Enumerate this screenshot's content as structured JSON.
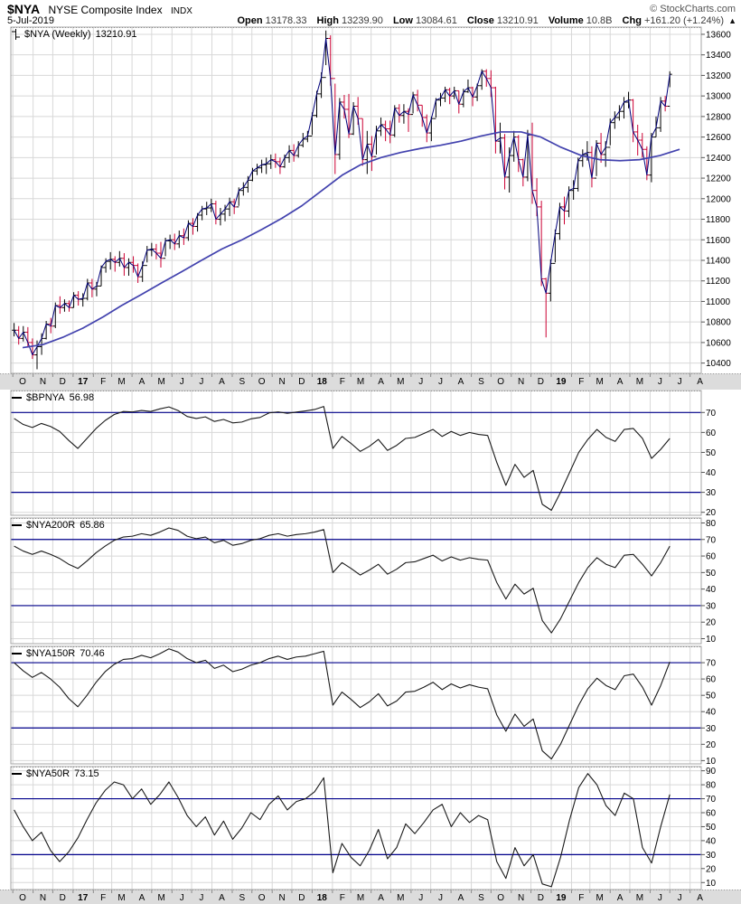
{
  "header": {
    "symbol": "$NYA",
    "name": "NYSE Composite Index",
    "exchange": "INDX",
    "date": "5-Jul-2019",
    "credit": "© StockCharts.com",
    "quote": {
      "open_label": "Open",
      "open": "13178.33",
      "high_label": "High",
      "high": "13239.90",
      "low_label": "Low",
      "low": "13084.61",
      "close_label": "Close",
      "close": "13210.91",
      "volume_label": "Volume",
      "volume": "10.8B",
      "chg_label": "Chg",
      "chg": "+161.20 (+1.24%)",
      "chg_dir": "▲"
    }
  },
  "main_panel": {
    "legend": "$NYA (Weekly)",
    "value": "13210.91"
  },
  "x_axis": {
    "labels": [
      "O",
      "N",
      "D",
      "17",
      "F",
      "M",
      "A",
      "M",
      "J",
      "J",
      "A",
      "S",
      "O",
      "N",
      "D",
      "18",
      "F",
      "M",
      "A",
      "M",
      "J",
      "J",
      "A",
      "S",
      "O",
      "N",
      "D",
      "19",
      "F",
      "M",
      "A",
      "M",
      "J",
      "J",
      "A"
    ]
  },
  "colors": {
    "up": "#000000",
    "down": "#cc0033",
    "close_line": "#00007a",
    "ma_line": "#4242ae",
    "indicator": "#1a1a1a",
    "ref": "#00008b",
    "grid": "#d8d8d8",
    "frame": "#a6a6a6",
    "strip": "#dcdcdc"
  },
  "chart_data": [
    {
      "id": "nya-weekly",
      "type": "ohlc",
      "title": "$NYA (Weekly)",
      "last": 13210.91,
      "frequency": "weekly",
      "start": "2016-10-03",
      "end": "2019-07-01",
      "ylim": [
        10300,
        13670
      ],
      "yticks": [
        13600,
        13400,
        13200,
        13000,
        12800,
        12600,
        12400,
        12200,
        12000,
        11800,
        11600,
        11400,
        11200,
        11000,
        10800,
        10600,
        10400
      ],
      "close": [
        10720,
        10640,
        10700,
        10600,
        10480,
        10560,
        10640,
        10780,
        10760,
        10960,
        10940,
        10980,
        10940,
        11060,
        11020,
        11030,
        11180,
        11120,
        11150,
        11330,
        11390,
        11410,
        11380,
        11420,
        11330,
        11380,
        11350,
        11240,
        11350,
        11500,
        11510,
        11470,
        11420,
        11590,
        11600,
        11560,
        11640,
        11620,
        11760,
        11730,
        11840,
        11900,
        11910,
        11950,
        11800,
        11850,
        11900,
        11970,
        11920,
        12080,
        12110,
        12180,
        12270,
        12300,
        12330,
        12340,
        12380,
        12360,
        12310,
        12400,
        12470,
        12420,
        12520,
        12580,
        12610,
        12810,
        13020,
        13180,
        13560,
        13170,
        12430,
        12940,
        12870,
        12630,
        12900,
        12780,
        12380,
        12530,
        12410,
        12660,
        12720,
        12680,
        12620,
        12880,
        12810,
        12850,
        12820,
        13010,
        12910,
        12790,
        12640,
        12780,
        12960,
        12980,
        13060,
        13000,
        13050,
        12920,
        13040,
        13080,
        12990,
        13100,
        13240,
        13170,
        13080,
        12560,
        12590,
        12210,
        12420,
        12600,
        12380,
        12210,
        12620,
        12080,
        11920,
        11220,
        11080,
        11370,
        11660,
        11920,
        11880,
        12080,
        12100,
        12370,
        12430,
        12450,
        12200,
        12540,
        12430,
        12500,
        12740,
        12790,
        12850,
        12940,
        12960,
        12650,
        12570,
        12480,
        12230,
        12600,
        12690,
        12950,
        12900,
        13211
      ],
      "high": [
        10790,
        10760,
        10760,
        10750,
        10640,
        10620,
        10690,
        10810,
        10840,
        10990,
        11050,
        11020,
        11010,
        11090,
        11100,
        11080,
        11220,
        11220,
        11190,
        11350,
        11420,
        11480,
        11440,
        11490,
        11470,
        11420,
        11440,
        11370,
        11390,
        11540,
        11570,
        11560,
        11580,
        11620,
        11650,
        11660,
        11690,
        11710,
        11790,
        11810,
        11860,
        11930,
        11970,
        12000,
        11980,
        11910,
        11940,
        12010,
        12000,
        12110,
        12160,
        12220,
        12300,
        12340,
        12380,
        12400,
        12430,
        12440,
        12400,
        12430,
        12520,
        12530,
        12560,
        12640,
        12660,
        12840,
        13050,
        13230,
        13637,
        13590,
        13120,
        12980,
        13010,
        13020,
        12940,
        12990,
        12780,
        12660,
        12610,
        12710,
        12790,
        12760,
        12760,
        12910,
        12920,
        12920,
        12880,
        13040,
        13060,
        12910,
        12820,
        12800,
        12980,
        13030,
        13090,
        13080,
        13090,
        13050,
        13070,
        13160,
        13090,
        13120,
        13260,
        13260,
        13250,
        13090,
        12740,
        12630,
        12500,
        12660,
        12620,
        12390,
        12670,
        12740,
        12200,
        11980,
        11230,
        11410,
        11700,
        11960,
        12020,
        12120,
        12180,
        12400,
        12480,
        12560,
        12510,
        12570,
        12640,
        12560,
        12780,
        12850,
        12910,
        12990,
        13040,
        12970,
        12720,
        12640,
        12510,
        12640,
        12800,
        12990,
        13000,
        13240
      ],
      "low": [
        10660,
        10580,
        10610,
        10560,
        10440,
        10340,
        10480,
        10630,
        10690,
        10740,
        10880,
        10900,
        10900,
        10940,
        10960,
        10950,
        11010,
        11040,
        11050,
        11150,
        11280,
        11310,
        11290,
        11340,
        11250,
        11250,
        11280,
        11180,
        11190,
        11380,
        11440,
        11410,
        11330,
        11440,
        11510,
        11500,
        11520,
        11550,
        11590,
        11650,
        11680,
        11790,
        11840,
        11870,
        11750,
        11740,
        11780,
        11830,
        11850,
        11930,
        12030,
        12060,
        12170,
        12230,
        12250,
        12240,
        12290,
        12300,
        12240,
        12300,
        12350,
        12360,
        12400,
        12500,
        12550,
        12620,
        12790,
        12980,
        13300,
        13100,
        12240,
        12380,
        12780,
        12590,
        12620,
        12720,
        12320,
        12240,
        12270,
        12430,
        12610,
        12560,
        12540,
        12600,
        12740,
        12730,
        12650,
        12830,
        12850,
        12700,
        12550,
        12560,
        12790,
        12900,
        12940,
        12920,
        12970,
        12830,
        12890,
        13030,
        12900,
        12950,
        13060,
        13090,
        12990,
        12440,
        12440,
        12090,
        12060,
        12360,
        12260,
        12120,
        12170,
        11950,
        11830,
        11150,
        10650,
        11000,
        11380,
        11600,
        11750,
        11820,
        11990,
        12070,
        12310,
        12370,
        12110,
        12220,
        12350,
        12310,
        12520,
        12680,
        12760,
        12780,
        12880,
        12550,
        12420,
        12400,
        12180,
        12160,
        12600,
        12650,
        12850,
        13085
      ],
      "ma_monthly": [
        10550,
        10580,
        10650,
        10740,
        10850,
        10960,
        11070,
        11180,
        11290,
        11400,
        11510,
        11600,
        11700,
        11810,
        11930,
        12080,
        12230,
        12330,
        12400,
        12450,
        12490,
        12520,
        12560,
        12610,
        12650,
        12650,
        12600,
        12500,
        12420,
        12380,
        12370,
        12380,
        12420,
        12480
      ]
    },
    {
      "id": "bpnya",
      "type": "line",
      "title": "$BPNYA",
      "last": 56.98,
      "last_str": "56.98",
      "ylim": [
        18.5,
        81
      ],
      "yticks": [
        70,
        60,
        50,
        40,
        30,
        20
      ],
      "ref_lines": [
        70,
        30
      ],
      "values": [
        67,
        64,
        62.5,
        64.5,
        63,
        60.5,
        56,
        52,
        57,
        62,
        66,
        69,
        70.5,
        70.3,
        71,
        70.5,
        71.8,
        72.8,
        71,
        68,
        67,
        67.8,
        65.5,
        66.5,
        64.8,
        65.2,
        66.8,
        67.5,
        69.8,
        70.3,
        69.6,
        70.2,
        70.8,
        71.5,
        73,
        52,
        58,
        54.5,
        50.5,
        53,
        56.5,
        51,
        53.5,
        57,
        57.5,
        59.5,
        61.5,
        58,
        60.5,
        58.5,
        60,
        59,
        58.5,
        45,
        33.5,
        44,
        37.5,
        41,
        24,
        21,
        30,
        40,
        50,
        56.5,
        61.5,
        57.5,
        55.5,
        61.5,
        62,
        57,
        47,
        51.5,
        57
      ]
    },
    {
      "id": "nya200r",
      "type": "line",
      "title": "$NYA200R",
      "last": 65.86,
      "last_str": "65.86",
      "ylim": [
        7,
        83
      ],
      "yticks": [
        80,
        70,
        60,
        50,
        40,
        30,
        20,
        10
      ],
      "ref_lines": [
        70,
        30
      ],
      "values": [
        66,
        63,
        61,
        63,
        61,
        58.5,
        55,
        52.5,
        57,
        62,
        66,
        69.5,
        71.5,
        72,
        73.5,
        72.5,
        74.5,
        77,
        75.5,
        72,
        70.5,
        71.5,
        68,
        69.5,
        66.5,
        67.5,
        69.5,
        70.5,
        72.5,
        73.5,
        72,
        73,
        73.5,
        74.5,
        76,
        50,
        56,
        52.5,
        48.5,
        51.5,
        55,
        49,
        52,
        56,
        56.5,
        58.5,
        60.5,
        57,
        59.5,
        57.5,
        59,
        58,
        57.5,
        44,
        34,
        43,
        37,
        40.5,
        21,
        13.5,
        22,
        33,
        44,
        53,
        59,
        55,
        53,
        60.5,
        61,
        55,
        48,
        56,
        66
      ]
    },
    {
      "id": "nya150r",
      "type": "line",
      "title": "$NYA150R",
      "last": 70.46,
      "last_str": "70.46",
      "ylim": [
        8,
        80
      ],
      "yticks": [
        70,
        60,
        50,
        40,
        30,
        20,
        10
      ],
      "ref_lines": [
        70,
        30
      ],
      "values": [
        70,
        65,
        61,
        64,
        60,
        55,
        48,
        43,
        50,
        58,
        64.5,
        69,
        72,
        72.5,
        74.5,
        73,
        75.5,
        78.5,
        76.5,
        72.5,
        70,
        71.5,
        66.5,
        68.5,
        64.5,
        66,
        68.5,
        70,
        72.5,
        74,
        72,
        73.5,
        74,
        75.5,
        77,
        44,
        52,
        47.5,
        42.5,
        46,
        51,
        43.5,
        46.5,
        52,
        52.5,
        55,
        58,
        53.5,
        57,
        54.5,
        56.5,
        55,
        54,
        38,
        28,
        38.5,
        31,
        35.5,
        16,
        11,
        20,
        32,
        44,
        54,
        60.5,
        56,
        53.5,
        62,
        63,
        55,
        44,
        56,
        70.5
      ]
    },
    {
      "id": "nya50r",
      "type": "line",
      "title": "$NYA50R",
      "last": 73.15,
      "last_str": "73.15",
      "ylim": [
        5,
        93
      ],
      "yticks": [
        90,
        80,
        70,
        60,
        50,
        40,
        30,
        20,
        10
      ],
      "ref_lines": [
        70,
        30
      ],
      "values": [
        62,
        50,
        40,
        46,
        33,
        25,
        32,
        42,
        55,
        67,
        76,
        82,
        80,
        70,
        77,
        66,
        73,
        82,
        71,
        58,
        50,
        57,
        44,
        54,
        41,
        49,
        60,
        55,
        66,
        72,
        62,
        68,
        70,
        75,
        85,
        17,
        38,
        28,
        22,
        33,
        48,
        27,
        35,
        52,
        45,
        53,
        62,
        66,
        50,
        60,
        53,
        58,
        55,
        25,
        13,
        35,
        22,
        30,
        9,
        7,
        28,
        55,
        78,
        88,
        80,
        65,
        58,
        74,
        70,
        35,
        24,
        50,
        73
      ]
    }
  ]
}
